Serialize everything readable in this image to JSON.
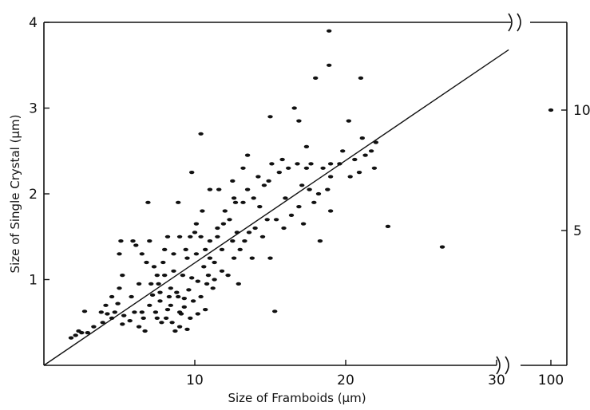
{
  "chart_data": {
    "type": "scatter",
    "title": "",
    "xlabel": "Size of Framboids (μm)",
    "ylabel": "Size of Single Crystal (μm)",
    "xlim": [
      0,
      30
    ],
    "ylim": [
      0,
      4
    ],
    "x_ticks": [
      10,
      20,
      30
    ],
    "y_ticks": [
      1,
      2,
      3,
      4
    ],
    "secondary_x_ticks": [
      100
    ],
    "secondary_y_ticks": [
      5,
      10
    ],
    "axis_breaks": "both axes broken beyond main range",
    "grid": false,
    "legend": "none",
    "marker_color": "#111111",
    "regression_line": {
      "x": [
        0,
        30.8
      ],
      "y": [
        0,
        3.68
      ]
    },
    "series": [
      {
        "values": [
          [
            1.8,
            0.32
          ],
          [
            2.1,
            0.35
          ],
          [
            2.5,
            0.38
          ],
          [
            2.9,
            0.38
          ],
          [
            2.3,
            0.4
          ],
          [
            3.3,
            0.45
          ],
          [
            3.9,
            0.5
          ],
          [
            2.7,
            0.63
          ],
          [
            4.2,
            0.6
          ],
          [
            4.5,
            0.55
          ],
          [
            4.1,
            0.7
          ],
          [
            5.2,
            0.48
          ],
          [
            5.7,
            0.52
          ],
          [
            6.3,
            0.45
          ],
          [
            6.7,
            0.4
          ],
          [
            5.3,
            0.58
          ],
          [
            6.5,
            0.62
          ],
          [
            4.9,
            0.72
          ],
          [
            5.8,
            0.8
          ],
          [
            5.0,
            0.9
          ],
          [
            6.3,
            0.95
          ],
          [
            5.2,
            1.05
          ],
          [
            5.0,
            1.3
          ],
          [
            6.1,
            1.4
          ],
          [
            5.1,
            1.45
          ],
          [
            5.9,
            1.45
          ],
          [
            4.5,
            0.8
          ],
          [
            7.0,
            0.7
          ],
          [
            7.4,
            0.62
          ],
          [
            8.1,
            0.55
          ],
          [
            8.5,
            0.5
          ],
          [
            9.0,
            0.45
          ],
          [
            9.5,
            0.42
          ],
          [
            8.7,
            0.4
          ],
          [
            7.8,
            0.5
          ],
          [
            8.2,
            0.65
          ],
          [
            9.1,
            0.6
          ],
          [
            9.7,
            0.55
          ],
          [
            10.2,
            0.6
          ],
          [
            10.7,
            0.65
          ],
          [
            7.2,
            0.82
          ],
          [
            7.6,
            0.95
          ],
          [
            8.4,
            0.9
          ],
          [
            8.8,
            0.85
          ],
          [
            9.3,
            0.78
          ],
          [
            9.9,
            0.75
          ],
          [
            10.4,
            0.8
          ],
          [
            7.5,
            1.05
          ],
          [
            8.0,
            1.05
          ],
          [
            8.6,
            1.1
          ],
          [
            9.2,
            1.05
          ],
          [
            9.8,
            1.02
          ],
          [
            10.2,
            0.98
          ],
          [
            10.8,
            0.95
          ],
          [
            11.2,
            0.9
          ],
          [
            6.8,
            1.2
          ],
          [
            7.3,
            1.15
          ],
          [
            7.9,
            1.2
          ],
          [
            9.5,
            1.25
          ],
          [
            10.1,
            1.3
          ],
          [
            10.7,
            1.35
          ],
          [
            11.0,
            1.45
          ],
          [
            11.5,
            1.5
          ],
          [
            6.5,
            1.3
          ],
          [
            7.0,
            1.45
          ],
          [
            8.0,
            1.35
          ],
          [
            8.6,
            1.3
          ],
          [
            9.0,
            1.5
          ],
          [
            10.0,
            1.55
          ],
          [
            10.4,
            1.5
          ],
          [
            10.5,
            1.8
          ],
          [
            11.5,
            1.6
          ],
          [
            11.9,
            1.65
          ],
          [
            12.3,
            1.7
          ],
          [
            12.8,
            1.55
          ],
          [
            13.3,
            1.45
          ],
          [
            12.0,
            1.8
          ],
          [
            12.6,
            1.95
          ],
          [
            13.2,
            1.9
          ],
          [
            11.0,
            2.05
          ],
          [
            11.6,
            2.05
          ],
          [
            12.5,
            2.15
          ],
          [
            13.5,
            2.05
          ],
          [
            13.9,
            1.95
          ],
          [
            14.3,
            1.85
          ],
          [
            14.8,
            1.7
          ],
          [
            15.4,
            1.7
          ],
          [
            15.9,
            1.6
          ],
          [
            14.2,
            2.2
          ],
          [
            14.9,
            2.15
          ],
          [
            15.6,
            2.25
          ],
          [
            16.2,
            2.3
          ],
          [
            16.8,
            2.35
          ],
          [
            17.4,
            2.3
          ],
          [
            15.1,
            2.35
          ],
          [
            15.8,
            2.4
          ],
          [
            17.1,
            2.1
          ],
          [
            17.6,
            2.05
          ],
          [
            18.2,
            2.0
          ],
          [
            18.8,
            2.05
          ],
          [
            18.5,
            2.3
          ],
          [
            19.0,
            2.2
          ],
          [
            19.6,
            2.35
          ],
          [
            20.3,
            2.2
          ],
          [
            20.9,
            2.25
          ],
          [
            21.3,
            2.45
          ],
          [
            21.7,
            2.5
          ],
          [
            22.0,
            2.6
          ],
          [
            19.8,
            2.5
          ],
          [
            20.6,
            2.4
          ],
          [
            21.1,
            2.65
          ],
          [
            21.9,
            2.3
          ],
          [
            16.4,
            1.75
          ],
          [
            16.9,
            1.85
          ],
          [
            17.2,
            1.65
          ],
          [
            18.3,
            1.45
          ],
          [
            19.0,
            1.8
          ],
          [
            15.3,
            0.63
          ],
          [
            13.8,
            1.25
          ],
          [
            12.9,
            0.95
          ],
          [
            12.2,
            1.05
          ],
          [
            11.3,
            1.2
          ],
          [
            9.8,
            2.25
          ],
          [
            9.7,
            1.5
          ],
          [
            9.4,
            1.35
          ],
          [
            10.1,
            1.65
          ],
          [
            8.2,
            1.5
          ],
          [
            8.9,
            1.9
          ],
          [
            10.4,
            2.7
          ],
          [
            15.0,
            1.25
          ],
          [
            16.6,
            3.0
          ],
          [
            18.0,
            3.35
          ],
          [
            18.9,
            3.5
          ],
          [
            18.9,
            3.9
          ],
          [
            21.0,
            3.35
          ],
          [
            20.2,
            2.85
          ],
          [
            16.9,
            2.85
          ],
          [
            17.4,
            2.55
          ],
          [
            15.0,
            2.9
          ],
          [
            22.8,
            1.62
          ],
          [
            26.4,
            1.38
          ],
          [
            6.9,
            1.9
          ],
          [
            7.1,
            0.95
          ],
          [
            7.7,
            0.75
          ],
          [
            8.4,
            0.7
          ],
          [
            9.3,
            0.68
          ],
          [
            9.0,
            0.62
          ],
          [
            7.5,
            0.55
          ],
          [
            6.6,
            0.55
          ],
          [
            6.0,
            0.62
          ],
          [
            4.7,
            0.62
          ],
          [
            3.8,
            0.62
          ],
          [
            11.3,
            1.0
          ],
          [
            11.8,
            1.1
          ],
          [
            12.6,
            1.25
          ],
          [
            13.0,
            1.35
          ],
          [
            13.6,
            1.55
          ],
          [
            14.0,
            1.6
          ],
          [
            14.5,
            1.5
          ],
          [
            12.5,
            1.45
          ],
          [
            11.8,
            1.35
          ],
          [
            11.0,
            1.25
          ],
          [
            10.6,
            1.15
          ],
          [
            10.9,
            1.05
          ],
          [
            9.6,
            0.88
          ],
          [
            8.9,
            0.8
          ],
          [
            8.3,
            0.8
          ],
          [
            7.7,
            0.85
          ],
          [
            13.5,
            2.45
          ],
          [
            14.6,
            2.1
          ],
          [
            13.2,
            2.3
          ],
          [
            12.7,
            1.9
          ],
          [
            17.9,
            1.9
          ],
          [
            17.7,
            2.35
          ],
          [
            19.0,
            2.35
          ],
          [
            16.0,
            1.95
          ]
        ]
      }
    ],
    "secondary_points": [
      [
        100,
        10.0
      ]
    ]
  }
}
